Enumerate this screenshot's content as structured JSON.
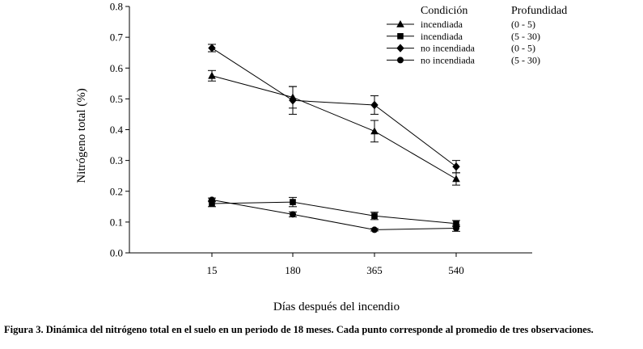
{
  "chart_data": {
    "type": "line",
    "title": "",
    "xlabel": "Días después del incendio",
    "ylabel": "Nitrógeno total (%)",
    "categories": [
      "15",
      "180",
      "365",
      "540"
    ],
    "ylim": [
      0,
      0.8
    ],
    "yticks": [
      "0.0",
      "0.1",
      "0.2",
      "0.3",
      "0.4",
      "0.5",
      "0.6",
      "0.7",
      "0.8"
    ],
    "grid": false,
    "legend_position": "top-right",
    "legend_headers": {
      "condition": "Condición",
      "depth": "Profundidad"
    },
    "series": [
      {
        "name": "incendiada (0 - 5)",
        "condition": "incendiada",
        "depth": "(0 - 5)",
        "marker": "triangle",
        "values": [
          0.575,
          0.505,
          0.395,
          0.24
        ],
        "errors": [
          0.017,
          0.035,
          0.035,
          0.02
        ]
      },
      {
        "name": "incendiada (5 - 30)",
        "condition": "incendiada",
        "depth": "(5 - 30)",
        "marker": "square",
        "values": [
          0.16,
          0.165,
          0.12,
          0.095
        ],
        "errors": [
          0.01,
          0.015,
          0.012,
          0.01
        ]
      },
      {
        "name": "no incendiada (0 - 5)",
        "condition": "no incendiada",
        "depth": "(0 - 5)",
        "marker": "diamond",
        "values": [
          0.665,
          0.495,
          0.48,
          0.28
        ],
        "errors": [
          0.012,
          0.045,
          0.03,
          0.02
        ]
      },
      {
        "name": "no incendiada (5 - 30)",
        "condition": "no incendiada",
        "depth": "(5 - 30)",
        "marker": "circle",
        "values": [
          0.172,
          0.125,
          0.075,
          0.08
        ],
        "errors": [
          0.006,
          0.008,
          0.004,
          0.01
        ]
      }
    ]
  },
  "caption": "Figura 3. Dinámica del nitrógeno total en el suelo en un periodo de 18 meses. Cada punto corresponde al promedio de tres observaciones."
}
